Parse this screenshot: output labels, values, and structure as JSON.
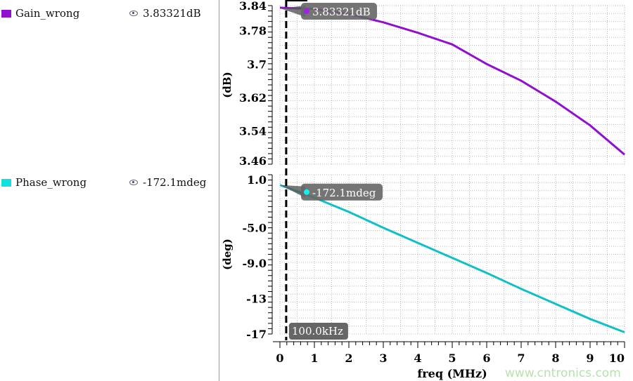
{
  "legend": [
    {
      "name": "Gain_wrong",
      "color": "#9010d0",
      "marker_value": "3.83321dB",
      "icon": "eye-icon"
    },
    {
      "name": "Phase_wrong",
      "color": "#10e0e0",
      "marker_value": "-172.1mdeg",
      "icon": "eye-icon"
    }
  ],
  "watermark": "www.cntronics.com",
  "chart_data": [
    {
      "type": "line",
      "ylabel": "(dB)",
      "ylim": [
        3.46,
        3.84
      ],
      "yticks": [
        "3.84",
        "3.78",
        "3.7",
        "3.62",
        "3.54",
        "3.46"
      ],
      "ytick_values": [
        3.84,
        3.78,
        3.7,
        3.62,
        3.54,
        3.46
      ],
      "grid": true,
      "series": [
        {
          "name": "Gain_wrong",
          "color": "#9010d0",
          "x": [
            0,
            1,
            2,
            3,
            4,
            5,
            6,
            7,
            8,
            9,
            10
          ],
          "y": [
            3.835,
            3.832,
            3.82,
            3.8,
            3.775,
            3.747,
            3.7,
            3.66,
            3.61,
            3.553,
            3.483
          ]
        }
      ],
      "marker": {
        "x": 0.1,
        "label": "3.83321dB",
        "y": 3.83321
      }
    },
    {
      "type": "line",
      "ylabel": "(deg)",
      "ylim": [
        -17,
        1.0
      ],
      "yticks": [
        "1.0",
        "-5.0",
        "-9.0",
        "-13",
        "-17"
      ],
      "ytick_values": [
        1,
        -5,
        -9,
        -13,
        -17
      ],
      "grid": true,
      "series": [
        {
          "name": "Phase_wrong",
          "color": "#10c0c8",
          "x": [
            0,
            1,
            2,
            3,
            4,
            5,
            6,
            7,
            8,
            9,
            10
          ],
          "y": [
            -0.17,
            -1.6,
            -3.2,
            -5.0,
            -6.7,
            -8.4,
            -10.1,
            -11.9,
            -13.6,
            -15.3,
            -16.8
          ]
        }
      ],
      "marker": {
        "x": 0.1,
        "label": "-172.1mdeg",
        "y": -0.1721
      }
    }
  ],
  "xaxis": {
    "label": "freq (MHz)",
    "xlim": [
      0,
      10
    ],
    "ticks": [
      "0",
      "1",
      "2",
      "3",
      "4",
      "5",
      "6",
      "7",
      "8",
      "9",
      "10"
    ]
  },
  "cursor": {
    "x": 0.1,
    "label": "100.0kHz"
  }
}
